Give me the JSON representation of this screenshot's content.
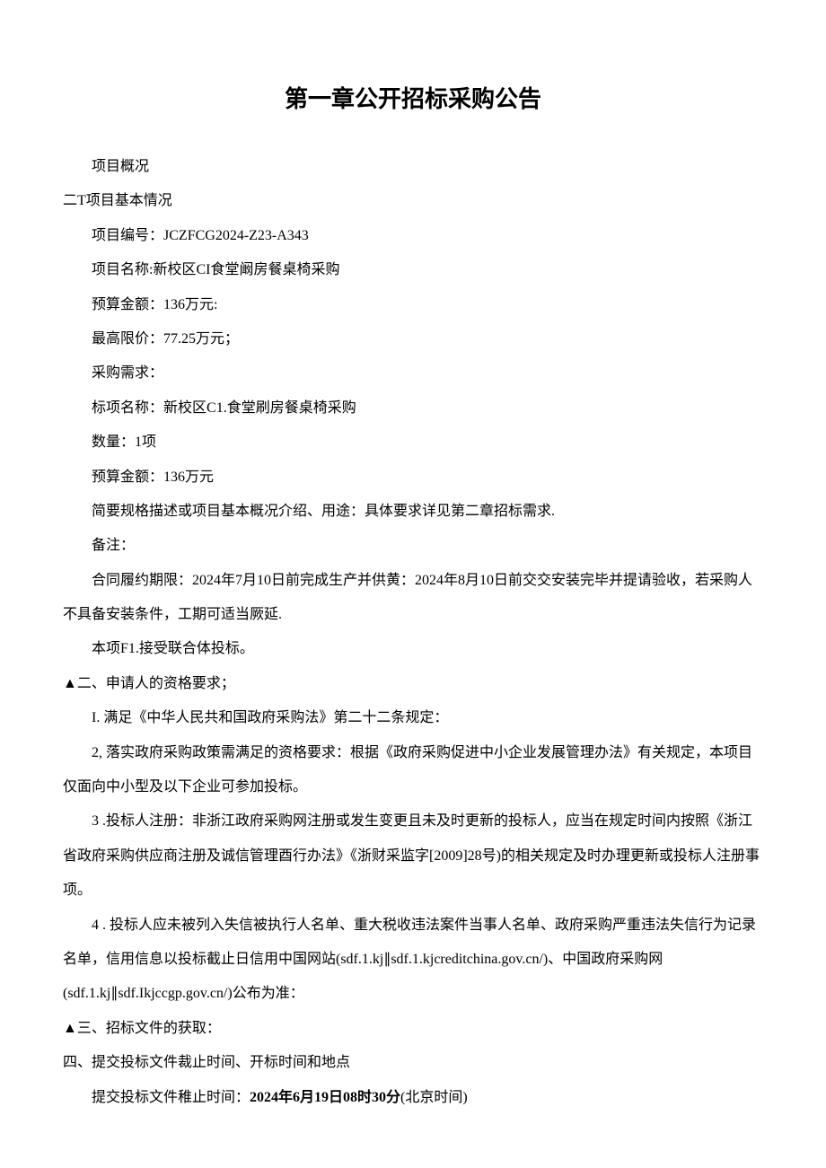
{
  "title": "第一章公开招标采购公告",
  "overview_label": "项目概况",
  "section1": {
    "heading": "二T项目基本情况",
    "project_no_label": "项目编号：",
    "project_no": "JCZFCG2024-Z23-A343",
    "project_name_label": "项目名称:",
    "project_name": "新校区CI食堂阚房餐桌椅采购",
    "budget_label": "预算金额：",
    "budget": "136万元:",
    "max_price_label": "最高限价：",
    "max_price": "77.25万元；",
    "purchase_req_label": "采购需求：",
    "bid_item_label": "标项名称：",
    "bid_item_name": "新校区C1.食堂刷房餐桌椅采购",
    "quantity_label": "数量：",
    "quantity": "1项",
    "item_budget_label": "预算金额：",
    "item_budget": "136万元",
    "spec_desc": "简要规格描述或项目基本概况介绍、用途：具体要求详见第二章招标需求.",
    "notes_label": "备注：",
    "contract_period": "合同履约期限：2024年7月10日前完成生产并供黄：2024年8月10日前交交安装完毕并提请验收，若采购人不具备安装条件，工期可适当厥延.",
    "consortium": "本项F1.接受联合体投标。"
  },
  "section2": {
    "heading": "▲二、申请人的资格要求；",
    "item1": "I. 满足《中华人民共和国政府采购法》第二十二条规定：",
    "item2": "2, 落实政府采购政策需满足的资格要求：根据《政府采购促进中小企业发展管理办法》有关规定，本项目仅面向中小型及以下企业可参加投标。",
    "item3": "3 .投标人注册：非浙江政府采购网注册或发生变更且未及时更新的投标人，应当在规定时间内按照《浙江省政府采购供应商注册及诚信管理酉行办法》《浙财采监字[2009]28号)的相关规定及时办理更新或投标人注册事项。",
    "item4": "4 . 投标人应未被列入失信被执行人名单、重大税收违法案件当事人名单、政府采购严重违法失信行为记录名单，信用信息以投标截止日信用中国网站(sdf.1.kj∥sdf.1.kjcreditchina.gov.cn/)、中国政府采购网(sdf.1.kj∥sdf.Ikjccgp.gov.cn/)公布为准："
  },
  "section3": {
    "heading": "▲三、招标文件的获取："
  },
  "section4": {
    "heading": "四、提交投标文件裁止时间、开标时间和地点",
    "deadline_prefix": "提交投标文件稚止时间：",
    "deadline_bold": "2024年6月19日08时30分",
    "deadline_suffix": "(北京时间)"
  }
}
